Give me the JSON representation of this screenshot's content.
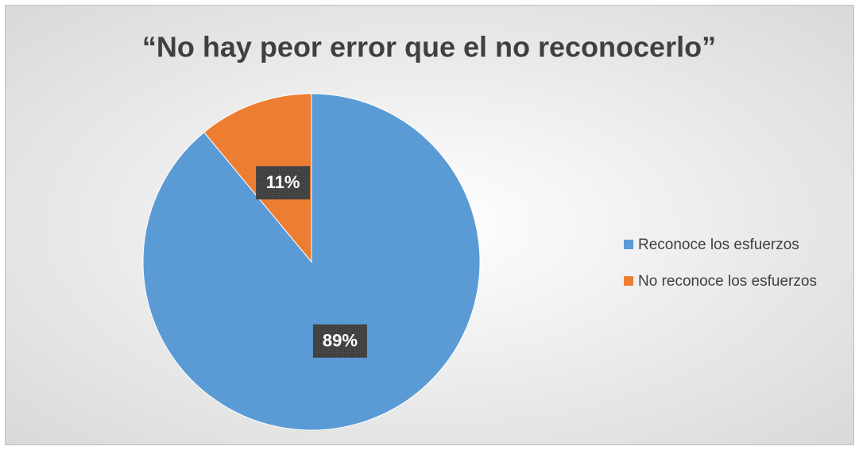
{
  "chart_data": {
    "type": "pie",
    "title": "“No hay peor error que el no reconocerlo”",
    "categories": [
      "Reconoce los esfuerzos",
      "No reconoce los esfuerzos"
    ],
    "values": [
      89,
      11
    ],
    "value_labels": [
      "89%",
      "11%"
    ],
    "colors": [
      "#5b9bd5",
      "#ed7d31"
    ],
    "legend": "right"
  }
}
